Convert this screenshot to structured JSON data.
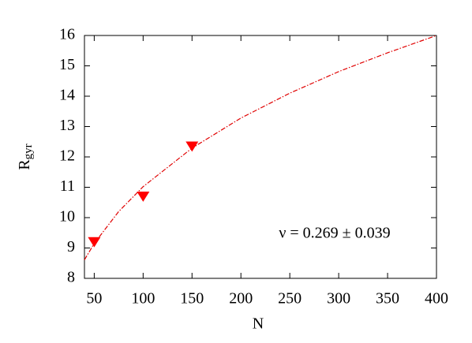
{
  "chart_data": {
    "type": "scatter",
    "xlabel": "N",
    "ylabel": "R",
    "ylabel_sub": "gyr",
    "annotation": "ν = 0.269 ± 0.039",
    "x": [
      50,
      100,
      150
    ],
    "values": [
      9.2,
      10.7,
      12.35
    ],
    "color": "#ff0000",
    "fit": {
      "x": [
        40,
        50,
        75,
        100,
        150,
        200,
        250,
        300,
        350,
        400
      ],
      "values": [
        8.61,
        9.15,
        10.2,
        11.02,
        12.29,
        13.28,
        14.1,
        14.81,
        15.43,
        16
      ],
      "color": "#e00000"
    },
    "xlim": [
      40,
      400
    ],
    "ylim": [
      8,
      16
    ],
    "xticks": [
      50,
      100,
      150,
      200,
      250,
      300,
      350,
      400
    ],
    "yticks": [
      8,
      9,
      10,
      11,
      12,
      13,
      14,
      15,
      16
    ],
    "grid": false
  }
}
